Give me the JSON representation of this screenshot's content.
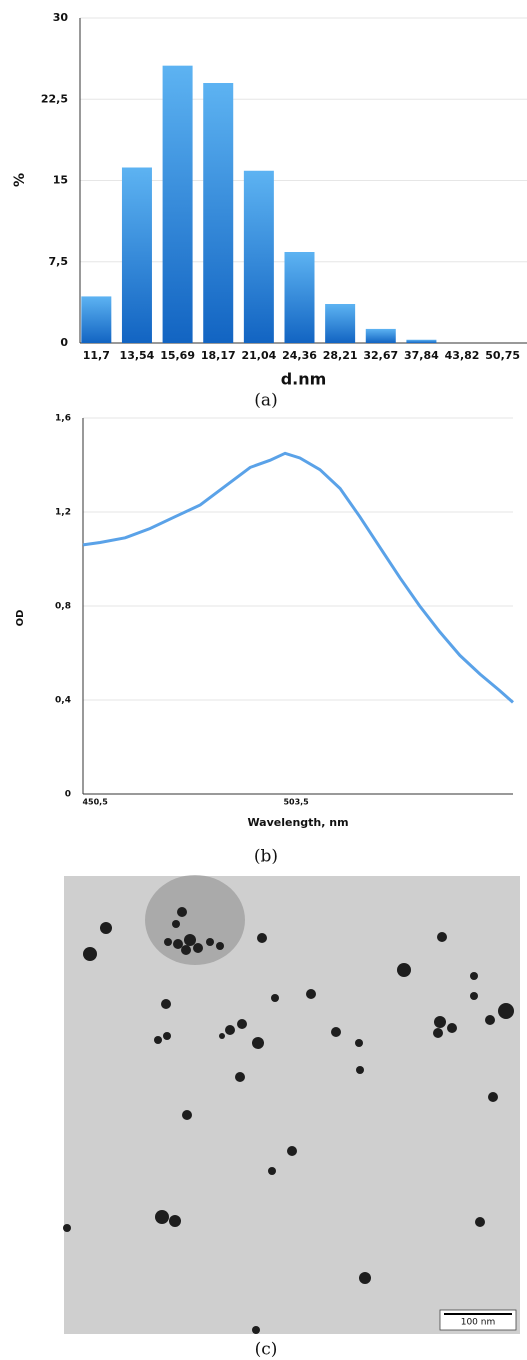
{
  "chart_data": [
    {
      "type": "bar",
      "caption": "(a)",
      "ylabel": "%",
      "xlabel": "d.nm",
      "categories": [
        "11,7",
        "13,54",
        "15,69",
        "18,17",
        "21,04",
        "24,36",
        "28,21",
        "32,67",
        "37,84",
        "43,82",
        "50,75"
      ],
      "values": [
        4.3,
        16.2,
        25.6,
        24.0,
        15.9,
        8.4,
        3.6,
        1.3,
        0.3,
        0,
        0
      ],
      "color": "#2a84dc",
      "ylim": [
        0,
        30
      ],
      "yticks": [
        0,
        {
          "value": 7.5,
          "label": "7,5"
        },
        15,
        {
          "value": 22.5,
          "label": "22,5"
        },
        30
      ],
      "grid": true
    },
    {
      "type": "line",
      "caption": "(b)",
      "ylabel": "OD",
      "xlabel": "Wavelength, nm",
      "x": [
        447.3,
        451.8,
        458.4,
        465.0,
        471.6,
        478.2,
        484.8,
        491.4,
        496.6,
        500.6,
        504.5,
        509.8,
        515.1,
        520.3,
        525.6,
        530.9,
        536.1,
        541.4,
        546.7,
        552.0,
        557.2,
        560.7
      ],
      "values": [
        1.06,
        1.07,
        1.09,
        1.13,
        1.18,
        1.23,
        1.31,
        1.39,
        1.42,
        1.45,
        1.43,
        1.38,
        1.3,
        1.18,
        1.05,
        0.92,
        0.8,
        0.69,
        0.59,
        0.51,
        0.44,
        0.39
      ],
      "color": "#5aa2e8",
      "xlim": [
        447.3,
        560.7
      ],
      "ylim": [
        0,
        1.6
      ],
      "xticks": [
        {
          "value": 450.5,
          "label": "450,5"
        },
        {
          "value": 503.5,
          "label": "503,5"
        }
      ],
      "yticks": [
        0,
        {
          "value": 0.4,
          "label": "0,4"
        },
        {
          "value": 0.8,
          "label": "0,8"
        },
        {
          "value": 1.2,
          "label": "1,2"
        },
        {
          "value": 1.6,
          "label": "1,6"
        }
      ],
      "grid": true
    }
  ],
  "image": {
    "caption": "(c)",
    "scale_bar": "100 nm"
  }
}
